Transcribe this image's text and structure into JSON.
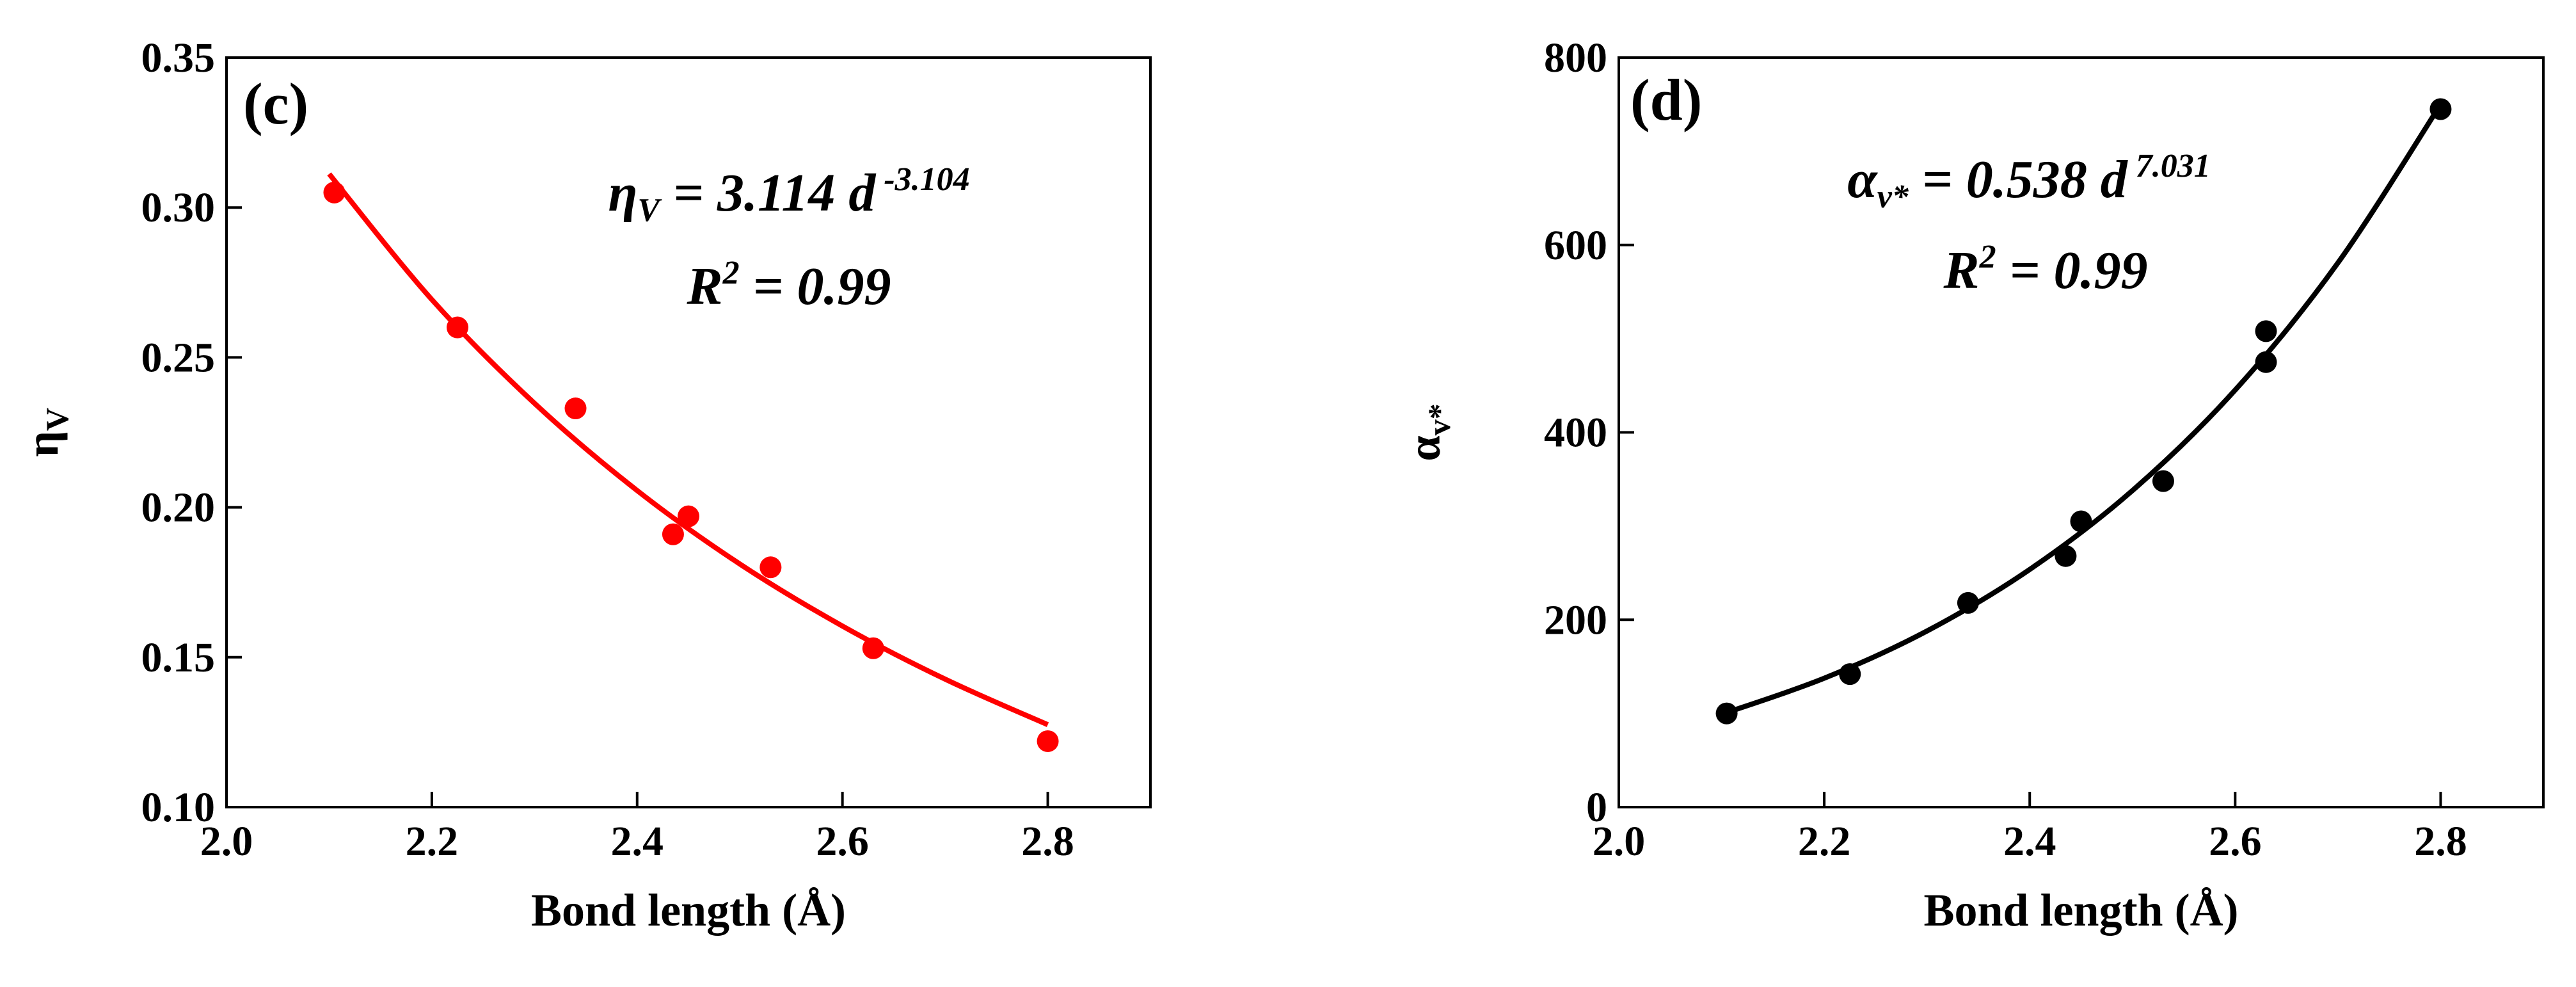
{
  "chart_data": [
    {
      "type": "scatter",
      "panel_label": "(c)",
      "xlabel": "Bond length (Å)",
      "ylabel": "η",
      "ylabel_sub": "V",
      "equation": {
        "lhs": "η",
        "lhs_sub": "V",
        "rhs": " = 3.114 d",
        "exponent": " -3.104"
      },
      "r2": {
        "base": "R",
        "sup": "2",
        "rest": " = 0.99"
      },
      "xlim": [
        2.0,
        2.9
      ],
      "xticks": [
        {
          "value": 2.0,
          "label": "2.0"
        },
        2.2,
        2.4,
        2.6,
        2.8
      ],
      "ylim": [
        0.1,
        0.35
      ],
      "yticks": [
        {
          "value": 0.1,
          "label": "0.10"
        },
        0.15,
        {
          "value": 0.2,
          "label": "0.20"
        },
        0.25,
        {
          "value": 0.3,
          "label": "0.30"
        },
        0.35
      ],
      "series": [
        {
          "type": "scatter",
          "color": "#ff0000",
          "x": [
            2.105,
            2.225,
            2.34,
            2.435,
            2.45,
            2.53,
            2.63,
            2.8
          ],
          "values": [
            0.305,
            0.26,
            0.233,
            0.191,
            0.197,
            0.18,
            0.153,
            0.122
          ]
        },
        {
          "type": "line",
          "color": "#ff0000",
          "x": [
            2.1,
            2.2,
            2.3,
            2.4,
            2.5,
            2.6,
            2.7,
            2.8
          ],
          "values": [
            0.3112,
            0.2693,
            0.2347,
            0.2056,
            0.1811,
            0.1604,
            0.1427,
            0.1275
          ]
        }
      ]
    },
    {
      "type": "scatter",
      "panel_label": "(d)",
      "xlabel": "Bond length (Å)",
      "ylabel": "α",
      "ylabel_sub": "v*",
      "equation": {
        "lhs": "α",
        "lhs_sub": "v*",
        "rhs": " = 0.538 d",
        "exponent": " 7.031"
      },
      "r2": {
        "base": "R",
        "sup": "2",
        "rest": " = 0.99"
      },
      "xlim": [
        2.0,
        2.9
      ],
      "xticks": [
        {
          "value": 2.0,
          "label": "2.0"
        },
        2.2,
        2.4,
        2.6,
        2.8
      ],
      "ylim": [
        0,
        800
      ],
      "yticks": [
        0,
        200,
        400,
        600,
        800
      ],
      "series": [
        {
          "type": "scatter",
          "color": "#000000",
          "x": [
            2.105,
            2.225,
            2.34,
            2.435,
            2.45,
            2.53,
            2.63,
            2.63,
            2.8
          ],
          "values": [
            100,
            142,
            218,
            268,
            305,
            348,
            475,
            508,
            745
          ]
        },
        {
          "type": "line",
          "color": "#000000",
          "x": [
            2.1,
            2.2,
            2.3,
            2.4,
            2.5,
            2.6,
            2.7,
            2.8
          ],
          "values": [
            99.1,
            137.6,
            188.0,
            253.7,
            337.9,
            445.2,
            580.9,
            750.0
          ]
        }
      ]
    }
  ]
}
